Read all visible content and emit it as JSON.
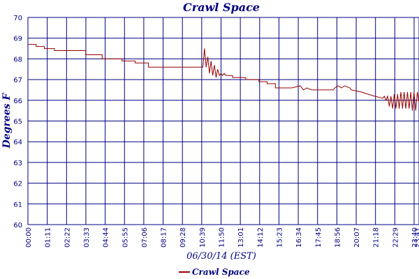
{
  "chart_data": {
    "type": "line",
    "title": "Crawl Space",
    "xlabel": "06/30/14 (EST)",
    "ylabel": "Degrees F",
    "ylim": [
      60,
      70
    ],
    "yticks": [
      "60",
      "61",
      "62",
      "63",
      "64",
      "65",
      "66",
      "67",
      "68",
      "69",
      "70"
    ],
    "xticks": [
      "00:00",
      "01:11",
      "02:22",
      "03:33",
      "04:44",
      "05:55",
      "07:06",
      "08:17",
      "09:28",
      "10:39",
      "11:50",
      "13:01",
      "14:12",
      "15:23",
      "16:34",
      "17:45",
      "18:56",
      "20:07",
      "21:18",
      "22:29",
      "23:40",
      "23:41"
    ],
    "grid": true,
    "legend_position": "bottom",
    "colors": {
      "series": "#990000",
      "grid": "#000080",
      "text": "#000080"
    },
    "series": [
      {
        "name": "Crawl Space",
        "x_hours": [
          0,
          0.5,
          0.5,
          1.0,
          1.0,
          1.6,
          1.6,
          3.5,
          3.5,
          4.5,
          4.5,
          5.7,
          5.7,
          6.5,
          6.5,
          7.3,
          7.3,
          9.0,
          9.0,
          10.6,
          10.7,
          10.8,
          10.9,
          11.0,
          11.1,
          11.2,
          11.3,
          11.4,
          11.5,
          11.6,
          11.7,
          11.8,
          11.9,
          12.0,
          12.2,
          12.4,
          12.4,
          13.2,
          13.2,
          14.0,
          14.0,
          14.5,
          14.5,
          15.0,
          15.0,
          16.0,
          16.0,
          16.5,
          16.7,
          16.9,
          17.2,
          17.6,
          17.6,
          18.5,
          18.6,
          18.8,
          19.0,
          19.2,
          19.5,
          19.6,
          20.2,
          20.2,
          21.0,
          21.0,
          21.5,
          21.6,
          21.7,
          21.8,
          21.9,
          22.0,
          22.1,
          22.2,
          22.3,
          22.4,
          22.5,
          22.6,
          22.7,
          22.8,
          22.9,
          23.0,
          23.1,
          23.2,
          23.3,
          23.4,
          23.5,
          23.6,
          23.7
        ],
        "values": [
          68.7,
          68.7,
          68.6,
          68.6,
          68.5,
          68.5,
          68.4,
          68.4,
          68.2,
          68.2,
          68.0,
          68.0,
          67.9,
          67.9,
          67.8,
          67.8,
          67.6,
          67.6,
          67.6,
          67.6,
          68.5,
          67.6,
          68.1,
          67.3,
          67.9,
          67.2,
          67.7,
          67.1,
          67.5,
          67.2,
          67.3,
          67.2,
          67.3,
          67.2,
          67.2,
          67.2,
          67.1,
          67.1,
          67.0,
          67.0,
          66.9,
          66.9,
          66.8,
          66.8,
          66.6,
          66.6,
          66.6,
          66.7,
          66.5,
          66.6,
          66.5,
          66.5,
          66.5,
          66.5,
          66.6,
          66.7,
          66.6,
          66.7,
          66.6,
          66.5,
          66.4,
          66.4,
          66.2,
          66.2,
          66.1,
          66.2,
          66.0,
          66.2,
          65.7,
          66.2,
          65.6,
          66.3,
          65.6,
          66.3,
          65.6,
          66.4,
          65.6,
          66.4,
          65.6,
          66.4,
          65.6,
          66.4,
          65.5,
          66.4,
          65.5,
          66.4,
          65.9
        ]
      }
    ]
  }
}
